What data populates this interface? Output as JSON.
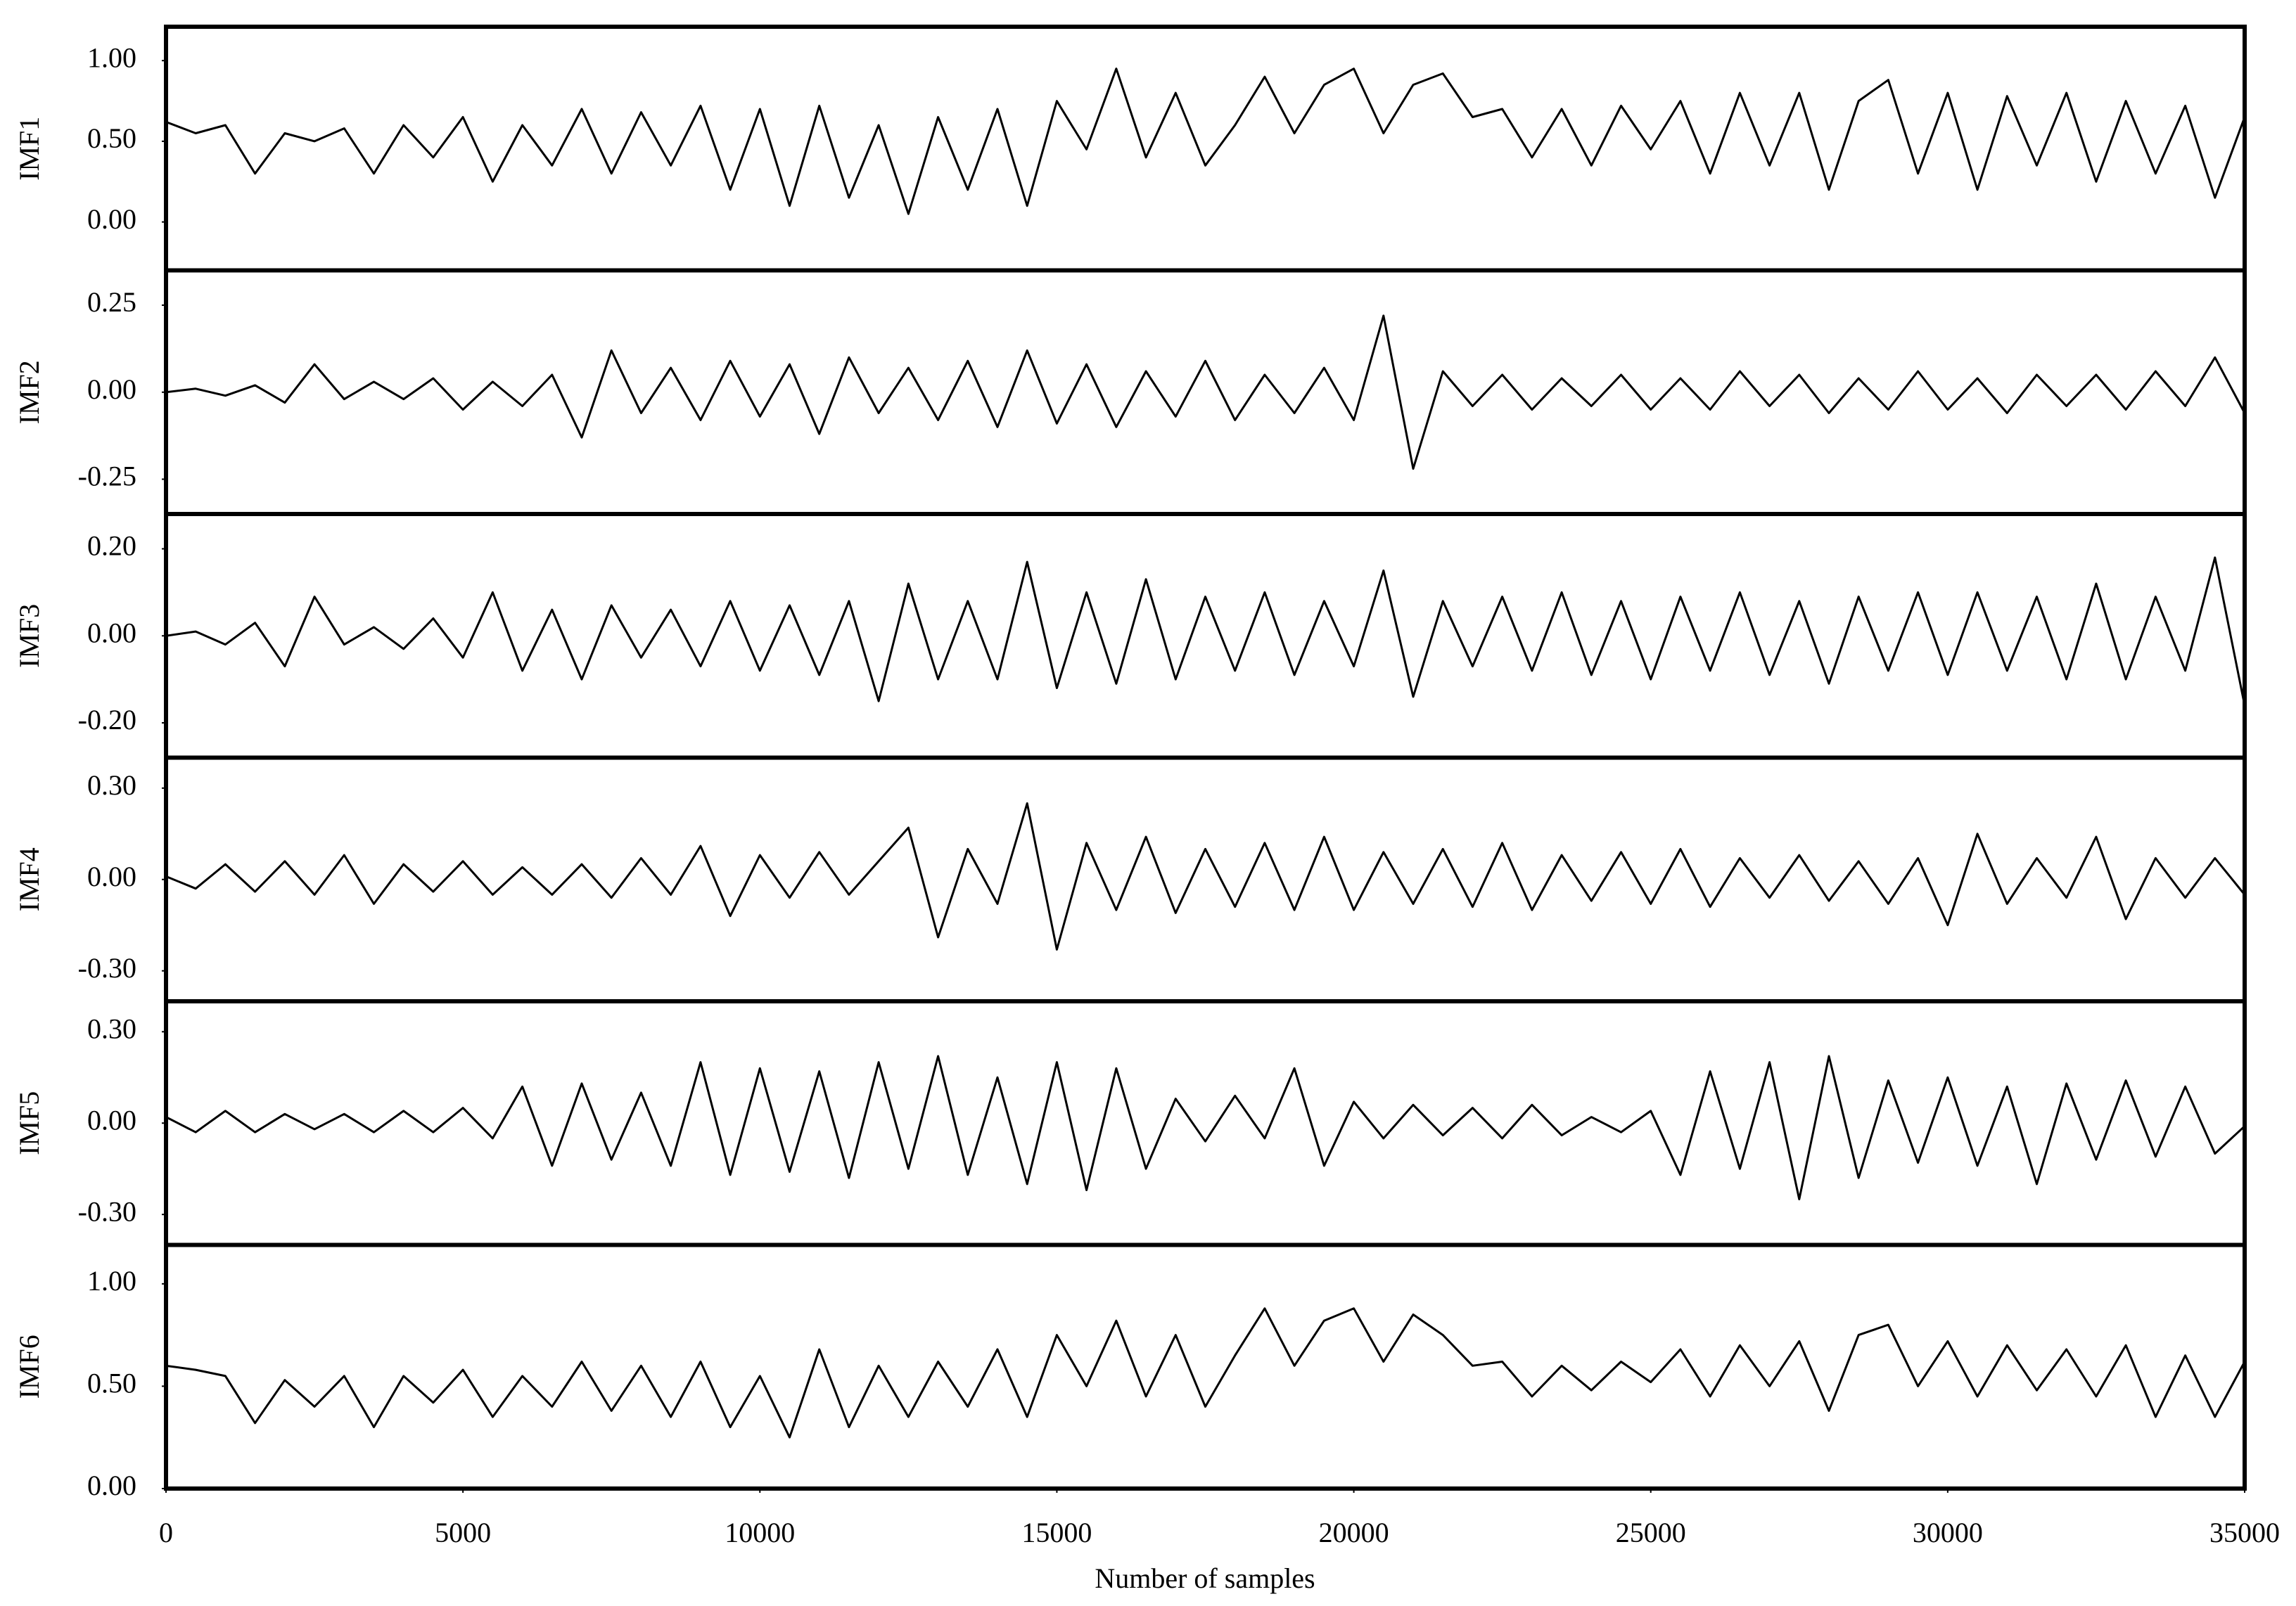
{
  "chart_data": {
    "type": "line",
    "xlabel": "Number of samples",
    "xlim": [
      0,
      35000
    ],
    "xticks": [
      0,
      5000,
      10000,
      15000,
      20000,
      25000,
      30000,
      35000
    ],
    "x": [
      0,
      500,
      1000,
      1500,
      2000,
      2500,
      3000,
      3500,
      4000,
      4500,
      5000,
      5500,
      6000,
      6500,
      7000,
      7500,
      8000,
      8500,
      9000,
      9500,
      10000,
      10500,
      11000,
      11500,
      12000,
      12500,
      13000,
      13500,
      14000,
      14500,
      15000,
      15500,
      16000,
      16500,
      17000,
      17500,
      18000,
      18500,
      19000,
      19500,
      20000,
      20500,
      21000,
      21500,
      22000,
      22500,
      23000,
      23500,
      24000,
      24500,
      25000,
      25500,
      26000,
      26500,
      27000,
      27500,
      28000,
      28500,
      29000,
      29500,
      30000,
      30500,
      31000,
      31500,
      32000,
      32500,
      33000,
      33500,
      34000,
      34500,
      35000
    ],
    "panels": [
      {
        "ylabel": "IMF1",
        "color": "#000000",
        "ylim": [
          -0.3,
          1.21
        ],
        "yticks": [
          {
            "value": 0,
            "label": "0.00"
          },
          {
            "value": 0.5,
            "label": "0.50"
          },
          {
            "value": 1,
            "label": "1.00"
          }
        ],
        "values": [
          0.62,
          0.55,
          0.6,
          0.3,
          0.55,
          0.5,
          0.58,
          0.3,
          0.6,
          0.4,
          0.65,
          0.25,
          0.6,
          0.35,
          0.7,
          0.3,
          0.68,
          0.35,
          0.72,
          0.2,
          0.7,
          0.1,
          0.72,
          0.15,
          0.6,
          0.05,
          0.65,
          0.2,
          0.7,
          0.1,
          0.75,
          0.45,
          0.95,
          0.4,
          0.8,
          0.35,
          0.6,
          0.9,
          0.55,
          0.85,
          0.95,
          0.55,
          0.85,
          0.92,
          0.65,
          0.7,
          0.4,
          0.7,
          0.35,
          0.72,
          0.45,
          0.75,
          0.3,
          0.8,
          0.35,
          0.8,
          0.2,
          0.75,
          0.88,
          0.3,
          0.8,
          0.2,
          0.78,
          0.35,
          0.8,
          0.25,
          0.75,
          0.3,
          0.72,
          0.15,
          0.65
        ]
      },
      {
        "ylabel": "IMF2",
        "color": "#000000",
        "ylim": [
          -0.35,
          0.35
        ],
        "yticks": [
          {
            "value": -0.25,
            "label": "-0.25"
          },
          {
            "value": 0,
            "label": "0.00"
          },
          {
            "value": 0.25,
            "label": "0.25"
          }
        ],
        "values": [
          0,
          0.01,
          -0.01,
          0.02,
          -0.03,
          0.08,
          -0.02,
          0.03,
          -0.02,
          0.04,
          -0.05,
          0.03,
          -0.04,
          0.05,
          -0.13,
          0.12,
          -0.06,
          0.07,
          -0.08,
          0.09,
          -0.07,
          0.08,
          -0.12,
          0.1,
          -0.06,
          0.07,
          -0.08,
          0.09,
          -0.1,
          0.12,
          -0.09,
          0.08,
          -0.1,
          0.06,
          -0.07,
          0.09,
          -0.08,
          0.05,
          -0.06,
          0.07,
          -0.08,
          0.22,
          -0.22,
          0.06,
          -0.04,
          0.05,
          -0.05,
          0.04,
          -0.04,
          0.05,
          -0.05,
          0.04,
          -0.05,
          0.06,
          -0.04,
          0.05,
          -0.06,
          0.04,
          -0.05,
          0.06,
          -0.05,
          0.04,
          -0.06,
          0.05,
          -0.04,
          0.05,
          -0.05,
          0.06,
          -0.04,
          0.1,
          -0.06
        ]
      },
      {
        "ylabel": "IMF3",
        "color": "#000000",
        "ylim": [
          -0.28,
          0.28
        ],
        "yticks": [
          {
            "value": -0.2,
            "label": "-0.20"
          },
          {
            "value": 0,
            "label": "0.00"
          },
          {
            "value": 0.2,
            "label": "0.20"
          }
        ],
        "values": [
          0,
          0.01,
          -0.02,
          0.03,
          -0.07,
          0.09,
          -0.02,
          0.02,
          -0.03,
          0.04,
          -0.05,
          0.1,
          -0.08,
          0.06,
          -0.1,
          0.07,
          -0.05,
          0.06,
          -0.07,
          0.08,
          -0.08,
          0.07,
          -0.09,
          0.08,
          -0.15,
          0.12,
          -0.1,
          0.08,
          -0.1,
          0.17,
          -0.12,
          0.1,
          -0.11,
          0.13,
          -0.1,
          0.09,
          -0.08,
          0.1,
          -0.09,
          0.08,
          -0.07,
          0.15,
          -0.14,
          0.08,
          -0.07,
          0.09,
          -0.08,
          0.1,
          -0.09,
          0.08,
          -0.1,
          0.09,
          -0.08,
          0.1,
          -0.09,
          0.08,
          -0.11,
          0.09,
          -0.08,
          0.1,
          -0.09,
          0.1,
          -0.08,
          0.09,
          -0.1,
          0.12,
          -0.1,
          0.09,
          -0.08,
          0.18,
          -0.16
        ]
      },
      {
        "ylabel": "IMF4",
        "color": "#000000",
        "ylim": [
          -0.4,
          0.4
        ],
        "yticks": [
          {
            "value": -0.3,
            "label": "-0.30"
          },
          {
            "value": 0,
            "label": "0.00"
          },
          {
            "value": 0.3,
            "label": "0.30"
          }
        ],
        "values": [
          0.01,
          -0.03,
          0.05,
          -0.04,
          0.06,
          -0.05,
          0.08,
          -0.08,
          0.05,
          -0.04,
          0.06,
          -0.05,
          0.04,
          -0.05,
          0.05,
          -0.06,
          0.07,
          -0.05,
          0.11,
          -0.12,
          0.08,
          -0.06,
          0.09,
          -0.05,
          0.06,
          0.17,
          -0.19,
          0.1,
          -0.08,
          0.25,
          -0.23,
          0.12,
          -0.1,
          0.14,
          -0.11,
          0.1,
          -0.09,
          0.12,
          -0.1,
          0.14,
          -0.1,
          0.09,
          -0.08,
          0.1,
          -0.09,
          0.12,
          -0.1,
          0.08,
          -0.07,
          0.09,
          -0.08,
          0.1,
          -0.09,
          0.07,
          -0.06,
          0.08,
          -0.07,
          0.06,
          -0.08,
          0.07,
          -0.15,
          0.15,
          -0.08,
          0.07,
          -0.06,
          0.14,
          -0.13,
          0.07,
          -0.06,
          0.07,
          -0.05
        ]
      },
      {
        "ylabel": "IMF5",
        "color": "#000000",
        "ylim": [
          -0.4,
          0.4
        ],
        "yticks": [
          {
            "value": -0.3,
            "label": "-0.30"
          },
          {
            "value": 0,
            "label": "0.00"
          },
          {
            "value": 0.3,
            "label": "0.30"
          }
        ],
        "values": [
          0.02,
          -0.03,
          0.04,
          -0.03,
          0.03,
          -0.02,
          0.03,
          -0.03,
          0.04,
          -0.03,
          0.05,
          -0.05,
          0.12,
          -0.14,
          0.13,
          -0.12,
          0.1,
          -0.14,
          0.2,
          -0.17,
          0.18,
          -0.16,
          0.17,
          -0.18,
          0.2,
          -0.15,
          0.22,
          -0.17,
          0.15,
          -0.2,
          0.2,
          -0.22,
          0.18,
          -0.15,
          0.08,
          -0.06,
          0.09,
          -0.05,
          0.18,
          -0.14,
          0.07,
          -0.05,
          0.06,
          -0.04,
          0.05,
          -0.05,
          0.06,
          -0.04,
          0.02,
          -0.03,
          0.04,
          -0.17,
          0.17,
          -0.15,
          0.2,
          -0.25,
          0.22,
          -0.18,
          0.14,
          -0.13,
          0.15,
          -0.14,
          0.12,
          -0.2,
          0.13,
          -0.12,
          0.14,
          -0.11,
          0.12,
          -0.1,
          -0.01
        ]
      },
      {
        "ylabel": "IMF6",
        "color": "#000000",
        "ylim": [
          0,
          1.19
        ],
        "yticks": [
          {
            "value": 0,
            "label": "0.00"
          },
          {
            "value": 0.5,
            "label": "0.50"
          },
          {
            "value": 1,
            "label": "1.00"
          }
        ],
        "values": [
          0.6,
          0.58,
          0.55,
          0.32,
          0.53,
          0.4,
          0.55,
          0.3,
          0.55,
          0.42,
          0.58,
          0.35,
          0.55,
          0.4,
          0.62,
          0.38,
          0.6,
          0.35,
          0.62,
          0.3,
          0.55,
          0.25,
          0.68,
          0.3,
          0.6,
          0.35,
          0.62,
          0.4,
          0.68,
          0.35,
          0.75,
          0.5,
          0.82,
          0.45,
          0.75,
          0.4,
          0.65,
          0.88,
          0.6,
          0.82,
          0.88,
          0.62,
          0.85,
          0.75,
          0.6,
          0.62,
          0.45,
          0.6,
          0.48,
          0.62,
          0.52,
          0.68,
          0.45,
          0.7,
          0.5,
          0.72,
          0.38,
          0.75,
          0.8,
          0.5,
          0.72,
          0.45,
          0.7,
          0.48,
          0.68,
          0.45,
          0.7,
          0.35,
          0.65,
          0.35,
          0.62
        ]
      }
    ]
  }
}
